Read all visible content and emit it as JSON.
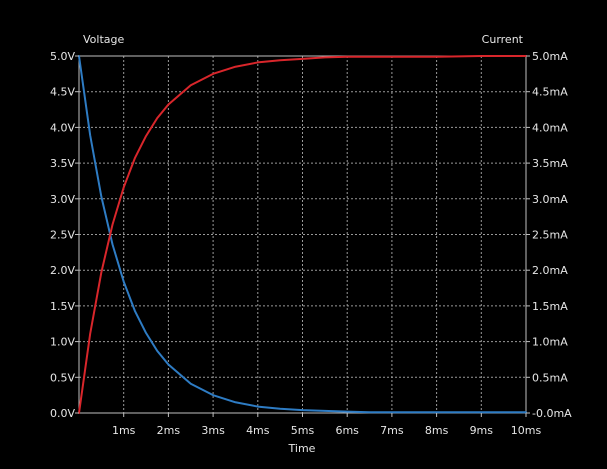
{
  "chart_data": {
    "type": "line",
    "title": "",
    "xlabel": "Time",
    "ylabel_left": "Voltage",
    "ylabel_right": "Current",
    "xlim": [
      0,
      10
    ],
    "ylim_left": [
      0,
      5
    ],
    "ylim_right": [
      0,
      5
    ],
    "x_ticks": [
      {
        "value": 1,
        "label": "1ms"
      },
      {
        "value": 2,
        "label": "2ms"
      },
      {
        "value": 3,
        "label": "3ms"
      },
      {
        "value": 4,
        "label": "4ms"
      },
      {
        "value": 5,
        "label": "5ms"
      },
      {
        "value": 6,
        "label": "6ms"
      },
      {
        "value": 7,
        "label": "7ms"
      },
      {
        "value": 8,
        "label": "8ms"
      },
      {
        "value": 9,
        "label": "9ms"
      },
      {
        "value": 10,
        "label": "10ms"
      }
    ],
    "y_ticks_left": [
      {
        "value": 0,
        "label": "0.0V"
      },
      {
        "value": 0.5,
        "label": "0.5V"
      },
      {
        "value": 1,
        "label": "1.0V"
      },
      {
        "value": 1.5,
        "label": "1.5V"
      },
      {
        "value": 2,
        "label": "2.0V"
      },
      {
        "value": 2.5,
        "label": "2.5V"
      },
      {
        "value": 3,
        "label": "3.0V"
      },
      {
        "value": 3.5,
        "label": "3.5V"
      },
      {
        "value": 4,
        "label": "4.0V"
      },
      {
        "value": 4.5,
        "label": "4.5V"
      },
      {
        "value": 5,
        "label": "5.0V"
      }
    ],
    "y_ticks_right": [
      {
        "value": 0,
        "label": "-0.0mA"
      },
      {
        "value": 0.5,
        "label": "0.5mA"
      },
      {
        "value": 1,
        "label": "1.0mA"
      },
      {
        "value": 1.5,
        "label": "1.5mA"
      },
      {
        "value": 2,
        "label": "2.0mA"
      },
      {
        "value": 2.5,
        "label": "2.5mA"
      },
      {
        "value": 3,
        "label": "3.0mA"
      },
      {
        "value": 3.5,
        "label": "3.5mA"
      },
      {
        "value": 4,
        "label": "4.0mA"
      },
      {
        "value": 4.5,
        "label": "4.5mA"
      },
      {
        "value": 5,
        "label": "5.0mA"
      }
    ],
    "grid": true,
    "legend": "none",
    "series": [
      {
        "axis": "right",
        "color": "#2e7cc4",
        "x": [
          0,
          0.25,
          0.5,
          0.75,
          1,
          1.25,
          1.5,
          1.75,
          2,
          2.5,
          3,
          3.5,
          4,
          4.5,
          5,
          5.5,
          6,
          6.5,
          7,
          8,
          9,
          10
        ],
        "y": [
          5.0,
          3.89,
          3.03,
          2.36,
          1.84,
          1.43,
          1.12,
          0.87,
          0.68,
          0.41,
          0.25,
          0.15,
          0.09,
          0.06,
          0.04,
          0.03,
          0.02,
          0.01,
          0.01,
          0.01,
          0.01,
          0.01
        ]
      },
      {
        "axis": "left",
        "color": "#d9262b",
        "x": [
          0,
          0.25,
          0.5,
          0.75,
          1,
          1.25,
          1.5,
          1.75,
          2,
          2.5,
          3,
          3.5,
          4,
          4.5,
          5,
          5.5,
          6,
          6.5,
          7,
          8,
          9,
          10
        ],
        "y": [
          0.0,
          1.11,
          1.97,
          2.64,
          3.16,
          3.57,
          3.88,
          4.13,
          4.32,
          4.59,
          4.75,
          4.85,
          4.91,
          4.94,
          4.96,
          4.98,
          4.99,
          4.99,
          4.99,
          4.99,
          5.0,
          5.0
        ]
      }
    ]
  }
}
